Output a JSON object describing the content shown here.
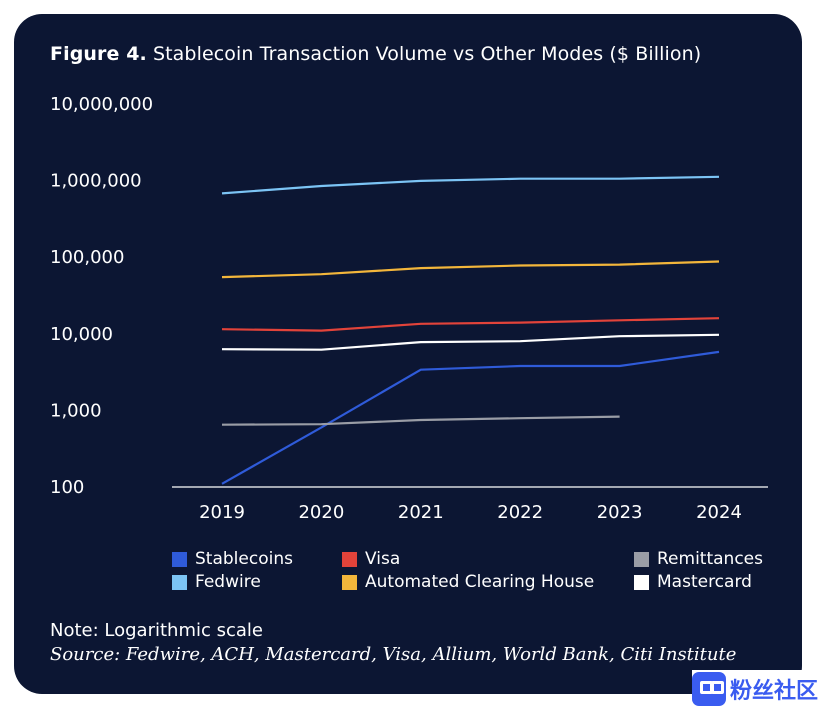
{
  "figure": {
    "label": "Figure 4.",
    "title": "Stablecoin Transaction Volume vs Other Modes ($ Billion)",
    "note": "Note: Logarithmic scale",
    "source": "Source: Fedwire, ACH, Mastercard, Visa, Allium, World Bank, Citi Institute"
  },
  "watermark": {
    "text": "粉丝社区",
    "icon": "watermark-logo-icon"
  },
  "chart_data": {
    "type": "line",
    "yscale": "log",
    "ylim": [
      100,
      10000000
    ],
    "yticks": [
      100,
      1000,
      10000,
      100000,
      1000000,
      10000000
    ],
    "ytick_labels": [
      "100",
      "1,000",
      "10,000",
      "100,000",
      "1,000,000",
      "10,000,000"
    ],
    "categories": [
      "2019",
      "2020",
      "2021",
      "2022",
      "2023",
      "2024"
    ],
    "grid": false,
    "legend_position": "bottom",
    "series": [
      {
        "name": "Fedwire",
        "color": "#7cc4f5",
        "values": [
          680000,
          850000,
          990000,
          1060000,
          1060000,
          1120000
        ]
      },
      {
        "name": "Automated Clearing House",
        "color": "#f3b63b",
        "values": [
          55000,
          60000,
          72000,
          78000,
          80000,
          88000
        ]
      },
      {
        "name": "Visa",
        "color": "#e2433a",
        "values": [
          11500,
          11000,
          13500,
          14000,
          15000,
          16000
        ]
      },
      {
        "name": "Mastercard",
        "color": "#ffffff",
        "values": [
          6300,
          6200,
          7800,
          8000,
          9300,
          9700
        ]
      },
      {
        "name": "Stablecoins",
        "color": "#2f5bd9",
        "values": [
          110,
          600,
          3400,
          3800,
          3800,
          5800
        ]
      },
      {
        "name": "Remittances",
        "color": "#9a9da6",
        "values": [
          650,
          660,
          750,
          790,
          830,
          null
        ]
      }
    ],
    "legend_order": [
      [
        "Stablecoins",
        "Visa",
        "Remittances"
      ],
      [
        "Fedwire",
        "Automated Clearing House",
        "Mastercard"
      ]
    ]
  }
}
